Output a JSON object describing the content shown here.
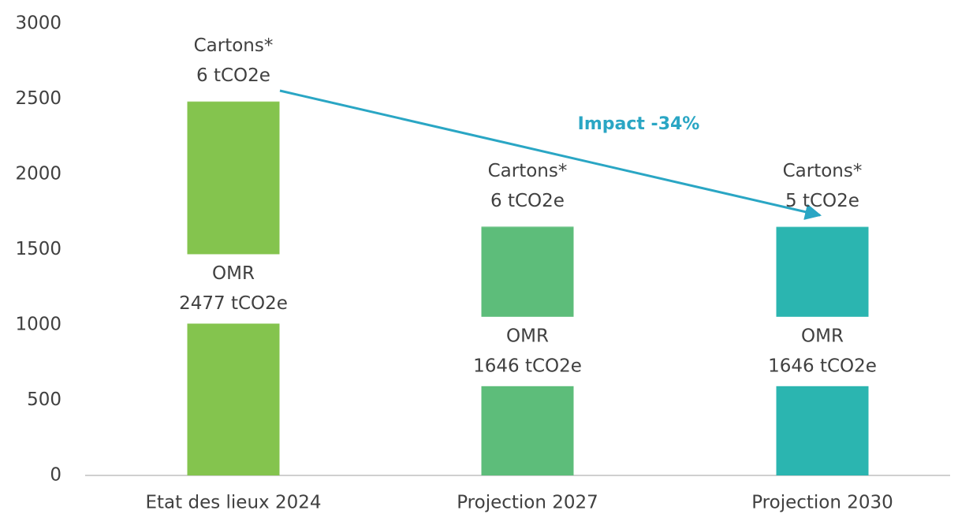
{
  "chart_data": {
    "type": "stacked_bar",
    "categories": [
      "Etat des lieux 2024",
      "Projection 2027",
      "Projection 2030"
    ],
    "colors": [
      "#84c44e",
      "#5dbd7a",
      "#2bb5b0"
    ],
    "series": [
      {
        "name": "OMR",
        "values": [
          2477,
          1646,
          1646
        ],
        "value_labels": [
          "2477 tCO2e",
          "1646 tCO2e",
          "1646 tCO2e"
        ]
      },
      {
        "name": "Cartons*",
        "values": [
          6,
          6,
          5
        ],
        "value_labels": [
          "6 tCO2e",
          "6 tCO2e",
          "5 tCO2e"
        ]
      }
    ],
    "ylim": [
      0,
      3000
    ],
    "yticks": [
      0,
      500,
      1000,
      1500,
      2000,
      2500,
      3000
    ],
    "annotation": "Impact -34%",
    "annotation_color": "#2aa6c4"
  }
}
